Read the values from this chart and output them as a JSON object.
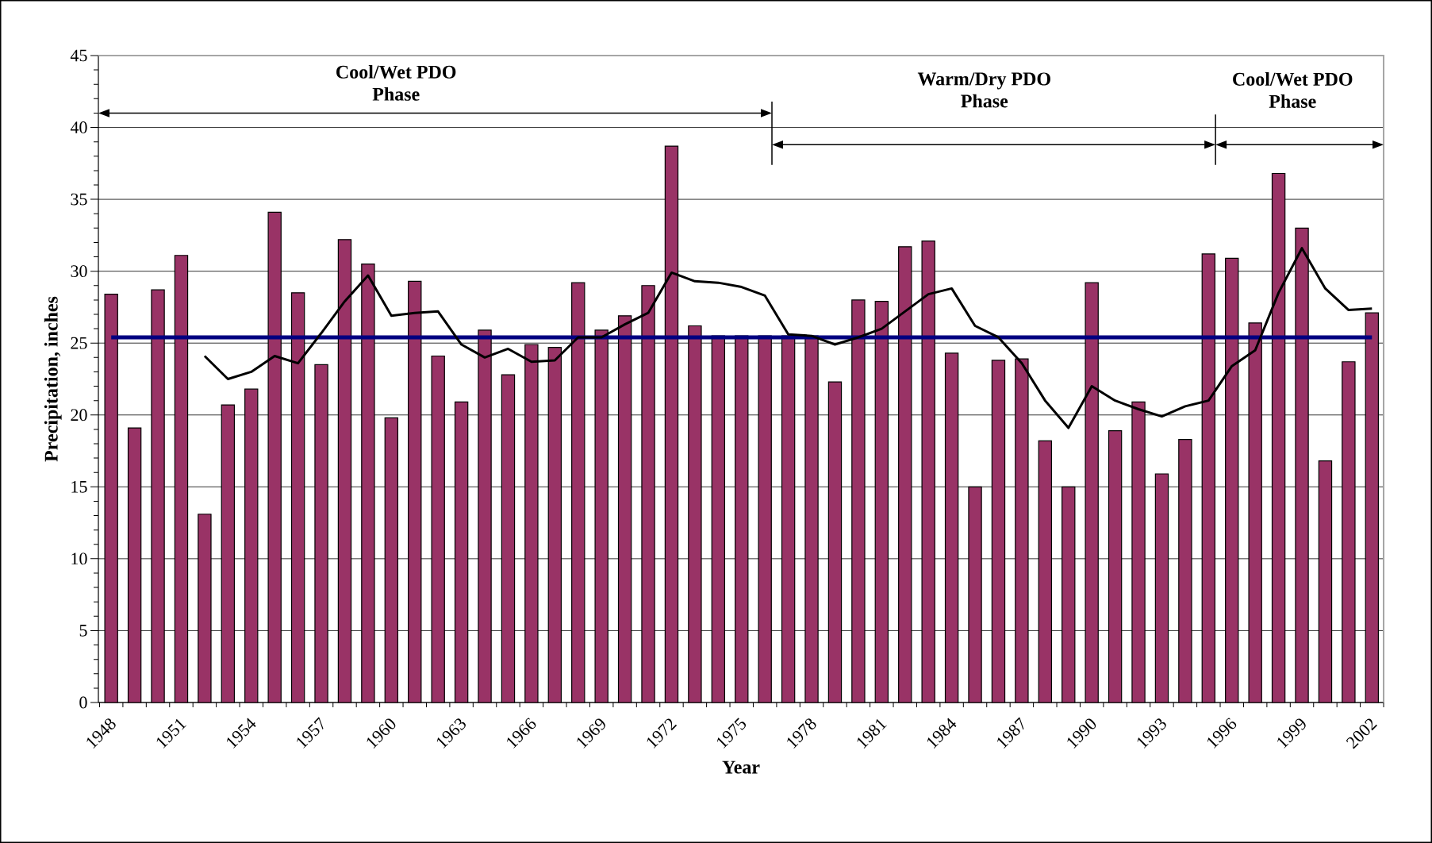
{
  "chart_data": {
    "type": "bar",
    "xlabel": "Year",
    "ylabel": "Precipitation, inches",
    "categories": [
      "1948",
      null,
      null,
      "1951",
      null,
      null,
      "1954",
      null,
      null,
      "1957",
      null,
      null,
      "1960",
      null,
      null,
      "1963",
      null,
      null,
      "1966",
      null,
      null,
      "1969",
      null,
      null,
      "1972",
      null,
      null,
      "1975",
      null,
      null,
      "1978",
      null,
      null,
      "1981",
      null,
      null,
      "1984",
      null,
      null,
      "1987",
      null,
      null,
      "1990",
      null,
      null,
      "1993",
      null,
      null,
      "1996",
      null,
      null,
      "1999",
      null,
      null,
      "2002"
    ],
    "series": [
      {
        "color": "#993366",
        "values": [
          28.4,
          19.1,
          28.7,
          31.1,
          13.1,
          20.7,
          21.8,
          34.1,
          28.5,
          23.5,
          32.2,
          30.5,
          19.8,
          29.3,
          24.1,
          20.9,
          25.9,
          22.8,
          24.9,
          24.7,
          29.2,
          25.9,
          26.9,
          29.0,
          38.7,
          26.2,
          25.5,
          25.5,
          25.5,
          25.5,
          25.5,
          22.3,
          28.0,
          27.9,
          31.7,
          32.1,
          24.3,
          15.0,
          23.8,
          23.9,
          18.2,
          15.0,
          29.2,
          18.9,
          20.9,
          15.9,
          18.3,
          31.2,
          30.9,
          26.4,
          36.8,
          33.0,
          16.8,
          23.7,
          27.1
        ]
      },
      {
        "type": "line",
        "color": "#000000",
        "values": [
          null,
          null,
          null,
          null,
          24.1,
          22.5,
          23.0,
          24.1,
          23.6,
          25.7,
          27.9,
          29.7,
          26.9,
          27.1,
          27.2,
          24.9,
          24.0,
          24.6,
          23.7,
          23.8,
          25.4,
          25.4,
          26.3,
          27.1,
          29.9,
          29.3,
          29.2,
          28.9,
          28.3,
          25.6,
          25.5,
          24.9,
          25.4,
          26.0,
          27.2,
          28.4,
          28.8,
          26.2,
          25.4,
          23.6,
          21.0,
          19.1,
          22.0,
          21.0,
          20.4,
          19.9,
          20.6,
          21.0,
          23.4,
          24.5,
          28.5,
          31.6,
          28.8,
          27.3,
          27.4
        ]
      }
    ],
    "ylim": [
      0,
      45
    ],
    "yticks": [
      0,
      5,
      10,
      15,
      20,
      25,
      30,
      35,
      40,
      45
    ],
    "grid": "y",
    "ref_lines": [
      {
        "axis": "y",
        "value": 25.4,
        "color": "#000080"
      }
    ],
    "annotations": [
      "Cool/Wet PDO Phase",
      "Warm/Dry PDO Phase",
      "Cool/Wet PDO Phase"
    ]
  }
}
